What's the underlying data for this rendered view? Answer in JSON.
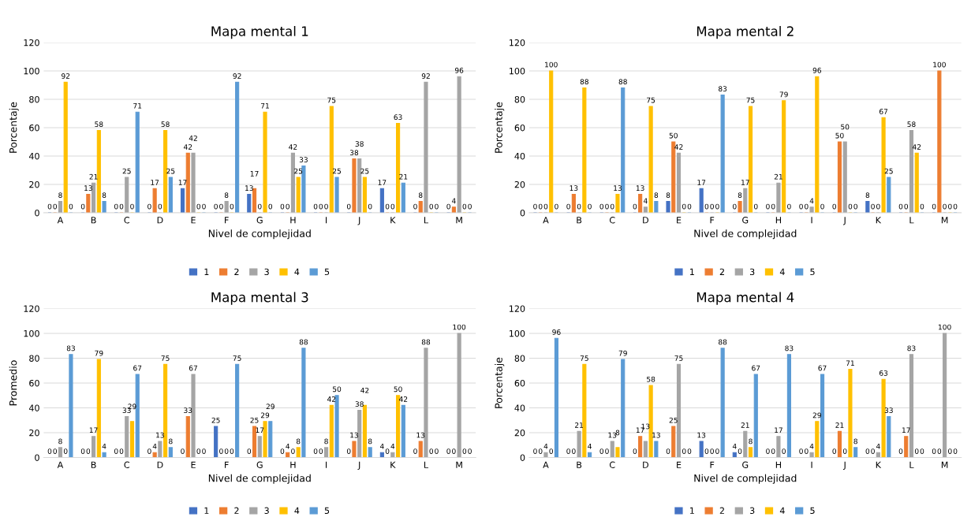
{
  "chart_data": [
    {
      "type": "bar",
      "title": "Mapa mental 1",
      "xlabel": "Nivel de complejidad",
      "ylabel": "Porcentaje",
      "categories": [
        "A",
        "B",
        "C",
        "D",
        "E",
        "F",
        "G",
        "H",
        "I",
        "J",
        "K",
        "L",
        "M"
      ],
      "ylim": [
        0,
        120
      ],
      "yticks": [
        0,
        20,
        40,
        60,
        80,
        100,
        120
      ],
      "grid": "y",
      "legend": "bottom",
      "data_labels": true,
      "series": [
        {
          "name": "1",
          "color": "#4472c4",
          "values": [
            0,
            0,
            0,
            0,
            17,
            0,
            13,
            0,
            0,
            0,
            17,
            0,
            0
          ]
        },
        {
          "name": "2",
          "color": "#ed7d31",
          "values": [
            0,
            13,
            0,
            17,
            42,
            0,
            17,
            0,
            0,
            38,
            0,
            8,
            4
          ]
        },
        {
          "name": "3",
          "color": "#a5a5a5",
          "values": [
            8,
            21,
            25,
            0,
            42,
            8,
            0,
            42,
            0,
            38,
            0,
            92,
            96
          ]
        },
        {
          "name": "4",
          "color": "#ffc000",
          "values": [
            92,
            58,
            0,
            58,
            0,
            0,
            71,
            25,
            75,
            25,
            63,
            0,
            0
          ]
        },
        {
          "name": "5",
          "color": "#5b9bd5",
          "values": [
            0,
            8,
            71,
            25,
            0,
            92,
            0,
            33,
            25,
            0,
            21,
            0,
            0
          ]
        }
      ]
    },
    {
      "type": "bar",
      "title": "Mapa mental 2",
      "xlabel": "Nivel de complejidad",
      "ylabel": "Porcentaje",
      "categories": [
        "A",
        "B",
        "C",
        "D",
        "E",
        "F",
        "G",
        "H",
        "I",
        "J",
        "K",
        "L",
        "M"
      ],
      "ylim": [
        0,
        120
      ],
      "yticks": [
        0,
        20,
        40,
        60,
        80,
        100,
        120
      ],
      "grid": "y",
      "legend": "bottom",
      "data_labels": true,
      "series": [
        {
          "name": "1",
          "color": "#4472c4",
          "values": [
            0,
            0,
            0,
            0,
            8,
            17,
            0,
            0,
            0,
            0,
            8,
            0,
            0
          ]
        },
        {
          "name": "2",
          "color": "#ed7d31",
          "values": [
            0,
            13,
            0,
            13,
            50,
            0,
            8,
            0,
            0,
            50,
            0,
            0,
            100
          ]
        },
        {
          "name": "3",
          "color": "#a5a5a5",
          "values": [
            0,
            0,
            0,
            4,
            42,
            0,
            17,
            21,
            4,
            50,
            0,
            58,
            0
          ]
        },
        {
          "name": "4",
          "color": "#ffc000",
          "values": [
            100,
            88,
            13,
            75,
            0,
            0,
            75,
            79,
            96,
            0,
            67,
            42,
            0
          ]
        },
        {
          "name": "5",
          "color": "#5b9bd5",
          "values": [
            0,
            0,
            88,
            8,
            0,
            83,
            0,
            0,
            0,
            0,
            25,
            0,
            0
          ]
        }
      ]
    },
    {
      "type": "bar",
      "title": "Mapa mental 3",
      "xlabel": "Nivel de complejidad",
      "ylabel": "Promedio",
      "categories": [
        "A",
        "B",
        "C",
        "D",
        "E",
        "F",
        "G",
        "H",
        "I",
        "J",
        "K",
        "L",
        "M"
      ],
      "ylim": [
        0,
        120
      ],
      "yticks": [
        0,
        20,
        40,
        60,
        80,
        100,
        120
      ],
      "grid": "y",
      "legend": "bottom",
      "data_labels": true,
      "series": [
        {
          "name": "1",
          "color": "#4472c4",
          "values": [
            0,
            0,
            0,
            0,
            0,
            25,
            0,
            0,
            0,
            0,
            4,
            0,
            0
          ]
        },
        {
          "name": "2",
          "color": "#ed7d31",
          "values": [
            0,
            0,
            0,
            4,
            33,
            0,
            25,
            4,
            0,
            13,
            0,
            13,
            0
          ]
        },
        {
          "name": "3",
          "color": "#a5a5a5",
          "values": [
            8,
            17,
            33,
            13,
            67,
            0,
            17,
            0,
            8,
            38,
            4,
            88,
            100
          ]
        },
        {
          "name": "4",
          "color": "#ffc000",
          "values": [
            0,
            79,
            29,
            75,
            0,
            0,
            29,
            8,
            42,
            42,
            50,
            0,
            0
          ]
        },
        {
          "name": "5",
          "color": "#5b9bd5",
          "values": [
            83,
            4,
            67,
            8,
            0,
            75,
            29,
            88,
            50,
            8,
            42,
            0,
            0
          ]
        }
      ]
    },
    {
      "type": "bar",
      "title": "Mapa mental 4",
      "xlabel": "Nivel de complejidad",
      "ylabel": "Porcentaje",
      "categories": [
        "A",
        "B",
        "C",
        "D",
        "E",
        "F",
        "G",
        "H",
        "I",
        "J",
        "K",
        "L",
        "M"
      ],
      "ylim": [
        0,
        120
      ],
      "yticks": [
        0,
        20,
        40,
        60,
        80,
        100,
        120
      ],
      "grid": "y",
      "legend": "bottom",
      "data_labels": true,
      "series": [
        {
          "name": "1",
          "color": "#4472c4",
          "values": [
            0,
            0,
            0,
            0,
            0,
            13,
            4,
            0,
            0,
            0,
            0,
            0,
            0
          ]
        },
        {
          "name": "2",
          "color": "#ed7d31",
          "values": [
            0,
            0,
            0,
            17,
            25,
            0,
            0,
            0,
            0,
            21,
            0,
            17,
            0
          ]
        },
        {
          "name": "3",
          "color": "#a5a5a5",
          "values": [
            4,
            21,
            13,
            13,
            75,
            0,
            21,
            17,
            4,
            0,
            4,
            83,
            100
          ]
        },
        {
          "name": "4",
          "color": "#ffc000",
          "values": [
            0,
            75,
            8,
            58,
            0,
            0,
            8,
            0,
            29,
            71,
            63,
            0,
            0
          ]
        },
        {
          "name": "5",
          "color": "#5b9bd5",
          "values": [
            96,
            4,
            79,
            13,
            0,
            88,
            67,
            83,
            67,
            8,
            33,
            0,
            0
          ]
        }
      ]
    }
  ]
}
